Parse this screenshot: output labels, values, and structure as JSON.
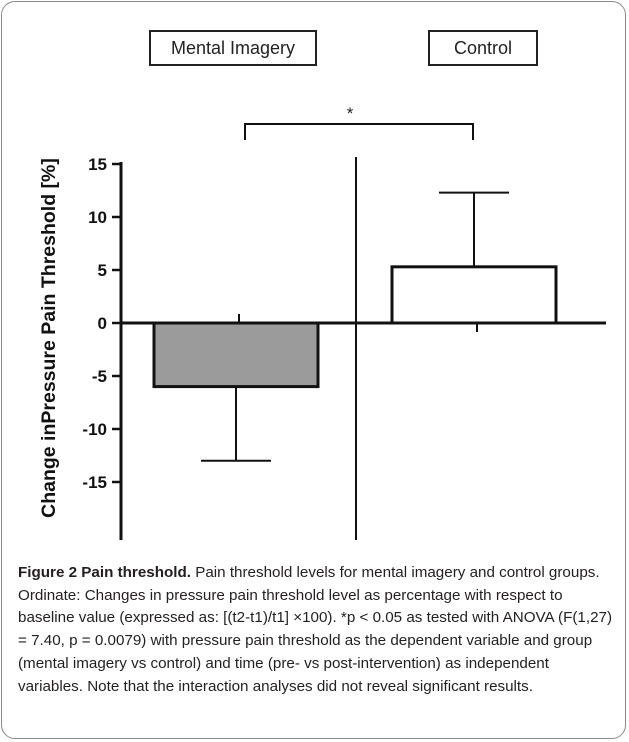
{
  "chart_data": {
    "type": "bar",
    "categories": [
      "Mental Imagery",
      "Control"
    ],
    "values": [
      -6,
      5.3
    ],
    "error_bars": [
      7,
      7
    ],
    "ylabel": "Change inPressure Pain Threshold [%]",
    "ylim": [
      -15,
      15
    ],
    "yticks": [
      15,
      10,
      5,
      0,
      -5,
      -10,
      -15
    ],
    "significance": "*",
    "bar_colors": [
      "#9b9b9b",
      "#ffffff"
    ]
  },
  "caption": {
    "title": "Figure 2 Pain threshold.",
    "text": " Pain threshold levels for mental imagery and control groups. Ordinate: Changes in pressure pain threshold level as percentage with respect to baseline value (expressed as: [(t2-t1)/t1] ×100). *p < 0.05 as tested with ANOVA (F(1,27) = 7.40, p = 0.0079) with pressure pain threshold as the dependent variable and group (mental imagery vs control) and time (pre- vs post-intervention) as independent variables. Note that the interaction analyses did not reveal significant results."
  }
}
